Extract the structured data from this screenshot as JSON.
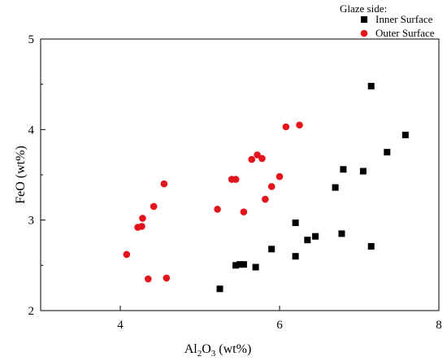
{
  "chart_data": {
    "type": "scatter",
    "xlabel_main": "Al",
    "xlabel_sub": "2",
    "xlabel_mid": "O",
    "xlabel_sub2": "3",
    "xlabel_unit": " (wt%)",
    "ylabel": "FeO (wt%)",
    "xlim": [
      3,
      8
    ],
    "ylim": [
      2,
      5
    ],
    "x_ticks": [
      "4",
      "6",
      "8"
    ],
    "y_ticks": [
      "2",
      "3",
      "4",
      "5"
    ],
    "x_tick_values": [
      4,
      6,
      8
    ],
    "y_tick_values": [
      2,
      3,
      4,
      5
    ],
    "grid": false,
    "legend": {
      "title": "Glaze side:",
      "placement": "top-right"
    },
    "series": [
      {
        "name": "Inner Surface",
        "marker": "square",
        "color": "#000000",
        "points": [
          [
            5.25,
            2.24
          ],
          [
            5.45,
            2.5
          ],
          [
            5.5,
            2.51
          ],
          [
            5.55,
            2.51
          ],
          [
            5.7,
            2.48
          ],
          [
            5.9,
            2.68
          ],
          [
            6.2,
            2.6
          ],
          [
            6.2,
            2.97
          ],
          [
            6.35,
            2.78
          ],
          [
            6.45,
            2.82
          ],
          [
            6.7,
            3.36
          ],
          [
            6.78,
            2.85
          ],
          [
            6.8,
            3.56
          ],
          [
            7.05,
            3.54
          ],
          [
            7.15,
            2.71
          ],
          [
            7.15,
            4.48
          ],
          [
            7.35,
            3.75
          ],
          [
            7.58,
            3.94
          ]
        ]
      },
      {
        "name": "Outer Surface",
        "marker": "circle",
        "color": "#e3141b",
        "points": [
          [
            4.08,
            2.62
          ],
          [
            4.35,
            2.35
          ],
          [
            4.58,
            2.36
          ],
          [
            4.22,
            2.92
          ],
          [
            4.27,
            2.93
          ],
          [
            4.28,
            3.02
          ],
          [
            4.42,
            3.15
          ],
          [
            4.55,
            3.4
          ],
          [
            5.22,
            3.12
          ],
          [
            5.4,
            3.45
          ],
          [
            5.45,
            3.45
          ],
          [
            5.55,
            3.09
          ],
          [
            5.65,
            3.67
          ],
          [
            5.72,
            3.72
          ],
          [
            5.78,
            3.68
          ],
          [
            5.82,
            3.23
          ],
          [
            5.9,
            3.37
          ],
          [
            6.0,
            3.48
          ],
          [
            6.08,
            4.03
          ],
          [
            6.25,
            4.05
          ]
        ]
      }
    ]
  }
}
